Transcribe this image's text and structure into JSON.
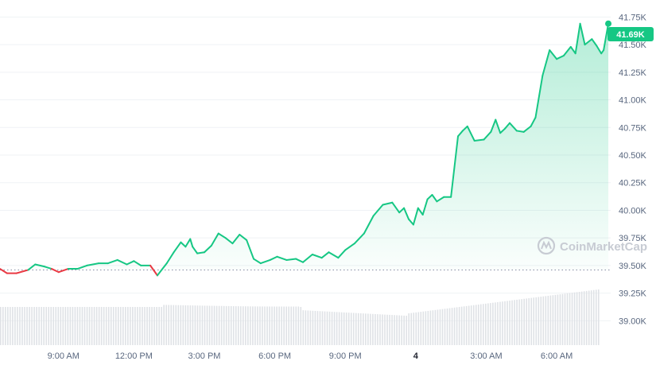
{
  "chart_data": {
    "type": "area",
    "x_tick_labels": [
      "9:00 AM",
      "12:00 PM",
      "3:00 PM",
      "6:00 PM",
      "9:00 PM",
      "4",
      "3:00 AM",
      "6:00 AM"
    ],
    "y_tick_labels": [
      "41.75K",
      "41.50K",
      "41.25K",
      "41.00K",
      "40.75K",
      "40.50K",
      "40.25K",
      "40.00K",
      "39.75K",
      "39.50K",
      "39.25K",
      "39.00K"
    ],
    "y_ticks": [
      41750,
      41500,
      41250,
      41000,
      40750,
      40500,
      40250,
      40000,
      39750,
      39500,
      39250,
      39000
    ],
    "ylim": [
      38880,
      41760
    ],
    "xlim": [
      6.3,
      32.3
    ],
    "reference_price": 39460,
    "last_price_label": "41.69K",
    "colors": {
      "up": "#16c784",
      "down": "#ea3943"
    },
    "series": [
      {
        "x": [
          6.3,
          6.6,
          7.0,
          7.5,
          7.8,
          8.2,
          8.5,
          8.8,
          9.2,
          9.6,
          10.0,
          10.5,
          10.9,
          11.3,
          11.7,
          12.0,
          12.3,
          12.7,
          13.0,
          13.4,
          13.7,
          14.0,
          14.2,
          14.4,
          14.5,
          14.7,
          15.0,
          15.3,
          15.6,
          15.9,
          16.2,
          16.5,
          16.8,
          17.1,
          17.4,
          17.8,
          18.1,
          18.5,
          18.9,
          19.2,
          19.6,
          20.0,
          20.3,
          20.7,
          21.0,
          21.4,
          21.8,
          22.2,
          22.6,
          23.0,
          23.3,
          23.5,
          23.7,
          23.9,
          24.1,
          24.3,
          24.5,
          24.7,
          24.9,
          25.2,
          25.5,
          25.8,
          26.0,
          26.2,
          26.5,
          26.9,
          27.2,
          27.4,
          27.6,
          27.8,
          28.0,
          28.3,
          28.6,
          28.9,
          29.1,
          29.4,
          29.7,
          30.0,
          30.3,
          30.6,
          30.8,
          31.0,
          31.2,
          31.5,
          31.7,
          31.9,
          32.0,
          32.2
        ],
        "y": [
          39.47,
          39.43,
          39.43,
          39.46,
          39.51,
          39.49,
          39.47,
          39.44,
          39.47,
          39.47,
          39.5,
          39.52,
          39.52,
          39.55,
          39.51,
          39.54,
          39.5,
          39.5,
          39.41,
          39.52,
          39.62,
          39.71,
          39.67,
          39.74,
          39.67,
          39.61,
          39.62,
          39.68,
          39.79,
          39.75,
          39.7,
          39.78,
          39.73,
          39.56,
          39.52,
          39.55,
          39.58,
          39.55,
          39.56,
          39.53,
          39.6,
          39.57,
          39.62,
          39.57,
          39.64,
          39.7,
          39.79,
          39.95,
          40.05,
          40.07,
          39.98,
          40.02,
          39.92,
          39.87,
          40.02,
          39.96,
          40.1,
          40.14,
          40.08,
          40.12,
          40.12,
          40.67,
          40.72,
          40.76,
          40.63,
          40.64,
          40.71,
          40.82,
          40.7,
          40.74,
          40.79,
          40.72,
          40.71,
          40.76,
          40.84,
          41.22,
          41.45,
          41.37,
          41.4,
          41.48,
          41.42,
          41.69,
          41.5,
          41.55,
          41.49,
          41.42,
          41.45,
          41.69
        ]
      }
    ],
    "volume_note": "gray volume bars along the bottom"
  },
  "watermark": "CoinMarketCap"
}
